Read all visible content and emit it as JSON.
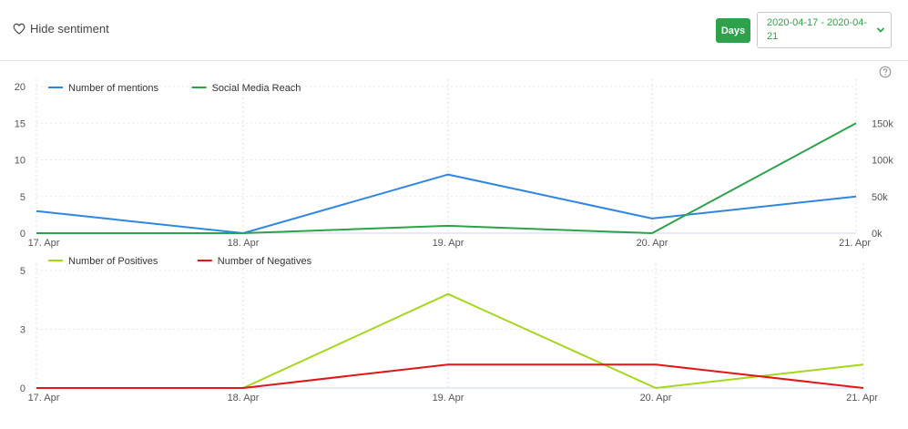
{
  "header": {
    "hide_sentiment_label": "Hide sentiment",
    "days_label": "Days",
    "date_range_line1": "2020-04-17 - 2020-04-",
    "date_range_line2": "21",
    "accent_color": "#2da24a"
  },
  "icons": {
    "hide": "heart-icon",
    "help": "question-circle-icon",
    "dropdown": "chevron-down-icon"
  },
  "chart_data": [
    {
      "type": "line",
      "categories": [
        "17. Apr",
        "18. Apr",
        "19. Apr",
        "20. Apr",
        "21. Apr"
      ],
      "legend_position": "top-left",
      "grid": true,
      "y_left": {
        "ticks": [
          "0",
          "5",
          "10",
          "15",
          "20"
        ],
        "lim": [
          0,
          20
        ],
        "color": "#2f86e0"
      },
      "y_right": {
        "ticks": [
          "0k",
          "50k",
          "100k",
          "150k"
        ],
        "lim": [
          0,
          200000
        ],
        "color": "#2da24a"
      },
      "series": [
        {
          "name": "Number of mentions",
          "axis": "left",
          "color": "#2f86e0",
          "values": [
            3,
            0,
            8,
            2,
            5
          ]
        },
        {
          "name": "Social Media Reach",
          "axis": "right",
          "color": "#2da24a",
          "values": [
            0,
            0,
            10000,
            0,
            150000
          ]
        }
      ]
    },
    {
      "type": "line",
      "categories": [
        "17. Apr",
        "18. Apr",
        "19. Apr",
        "20. Apr",
        "21. Apr"
      ],
      "legend_position": "top-left",
      "grid": true,
      "y_left": {
        "ticks": [
          "0",
          "3",
          "5"
        ],
        "tick_values": [
          0,
          2.5,
          5
        ],
        "lim": [
          0,
          5
        ]
      },
      "series": [
        {
          "name": "Number of Positives",
          "color": "#a6d61e",
          "values": [
            0,
            0,
            4,
            0,
            1
          ]
        },
        {
          "name": "Number of Negatives",
          "color": "#e01717",
          "values": [
            0,
            0,
            1,
            1,
            0
          ]
        }
      ]
    }
  ]
}
